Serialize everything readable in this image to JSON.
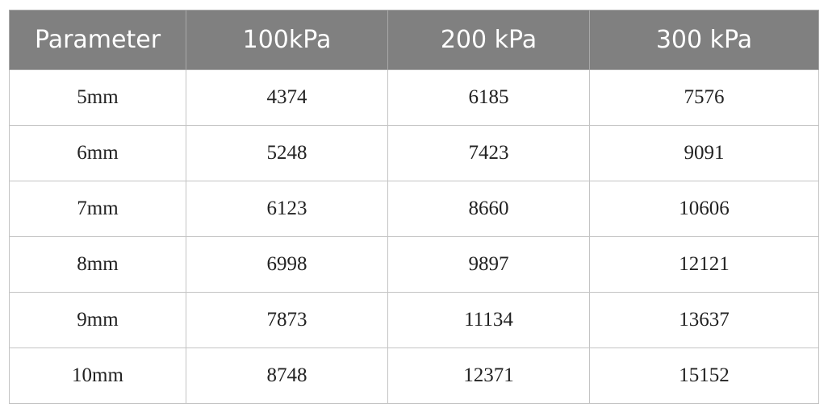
{
  "table": {
    "header": [
      "Parameter",
      "100kPa",
      "200 kPa",
      "300 kPa"
    ],
    "rows": [
      [
        "5mm",
        "4374",
        "6185",
        "7576"
      ],
      [
        "6mm",
        "5248",
        "7423",
        "9091"
      ],
      [
        "7mm",
        "6123",
        "8660",
        "10606"
      ],
      [
        "8mm",
        "6998",
        "9897",
        "12121"
      ],
      [
        "9mm",
        "7873",
        "11134",
        "13637"
      ],
      [
        "10mm",
        "8748",
        "12371",
        "15152"
      ]
    ]
  }
}
